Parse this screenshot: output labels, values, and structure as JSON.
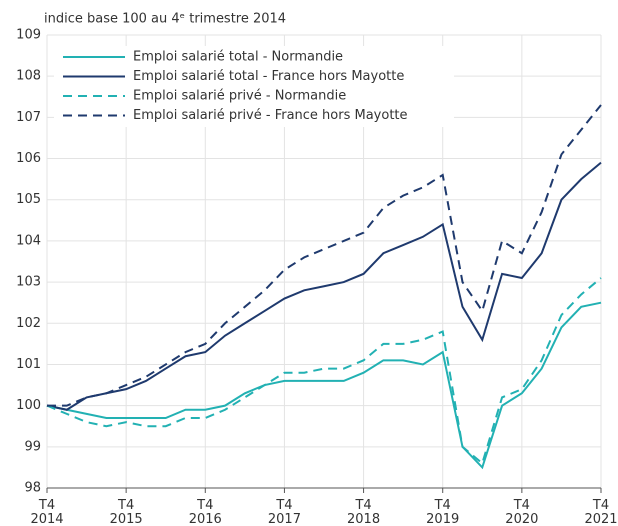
{
  "chart_data": {
    "type": "line",
    "title": "indice base 100 au 4ᵉ trimestre 2014",
    "categories": [
      "T4 2014",
      null,
      null,
      null,
      "T4 2015",
      null,
      null,
      null,
      "T4 2016",
      null,
      null,
      null,
      "T4 2017",
      null,
      null,
      null,
      "T4 2018",
      null,
      null,
      null,
      "T4 2019",
      null,
      null,
      null,
      "T4 2020",
      null,
      null,
      null,
      "T4 2021"
    ],
    "ylim": [
      98,
      109
    ],
    "yticks": [
      98,
      99,
      100,
      101,
      102,
      103,
      104,
      105,
      106,
      107,
      108,
      109
    ],
    "grid": true,
    "legend": "top-left",
    "series": [
      {
        "name": "Emploi salarié total - Normandie",
        "color": "#22b1b3",
        "style": "solid",
        "values": [
          100,
          99.9,
          99.8,
          99.7,
          99.7,
          99.7,
          99.7,
          99.9,
          99.9,
          100.0,
          100.3,
          100.5,
          100.6,
          100.6,
          100.6,
          100.6,
          100.8,
          101.1,
          101.1,
          101.0,
          101.3,
          99.0,
          98.5,
          100.0,
          100.3,
          100.9,
          101.9,
          102.4,
          102.5
        ]
      },
      {
        "name": "Emploi salarié total - France hors Mayotte",
        "color": "#1f3a6e",
        "style": "solid",
        "values": [
          100,
          99.9,
          100.2,
          100.3,
          100.4,
          100.6,
          100.9,
          101.2,
          101.3,
          101.7,
          102.0,
          102.3,
          102.6,
          102.8,
          102.9,
          103.0,
          103.2,
          103.7,
          103.9,
          104.1,
          104.4,
          102.4,
          101.6,
          103.2,
          103.1,
          103.7,
          105.0,
          105.5,
          105.9
        ]
      },
      {
        "name": "Emploi salarié privé - Normandie",
        "color": "#22b1b3",
        "style": "dashed",
        "values": [
          100,
          99.8,
          99.6,
          99.5,
          99.6,
          99.5,
          99.5,
          99.7,
          99.7,
          99.9,
          100.2,
          100.5,
          100.8,
          100.8,
          100.9,
          100.9,
          101.1,
          101.5,
          101.5,
          101.6,
          101.8,
          99.0,
          98.6,
          100.2,
          100.4,
          101.1,
          102.2,
          102.7,
          103.1
        ]
      },
      {
        "name": "Emploi salarié privé - France hors Mayotte",
        "color": "#1f3a6e",
        "style": "dashed",
        "values": [
          100,
          100.0,
          100.2,
          100.3,
          100.5,
          100.7,
          101.0,
          101.3,
          101.5,
          102.0,
          102.4,
          102.8,
          103.3,
          103.6,
          103.8,
          104.0,
          104.2,
          104.8,
          105.1,
          105.3,
          105.6,
          103.0,
          102.3,
          104.0,
          103.7,
          104.7,
          106.1,
          106.7,
          107.3
        ]
      }
    ]
  }
}
